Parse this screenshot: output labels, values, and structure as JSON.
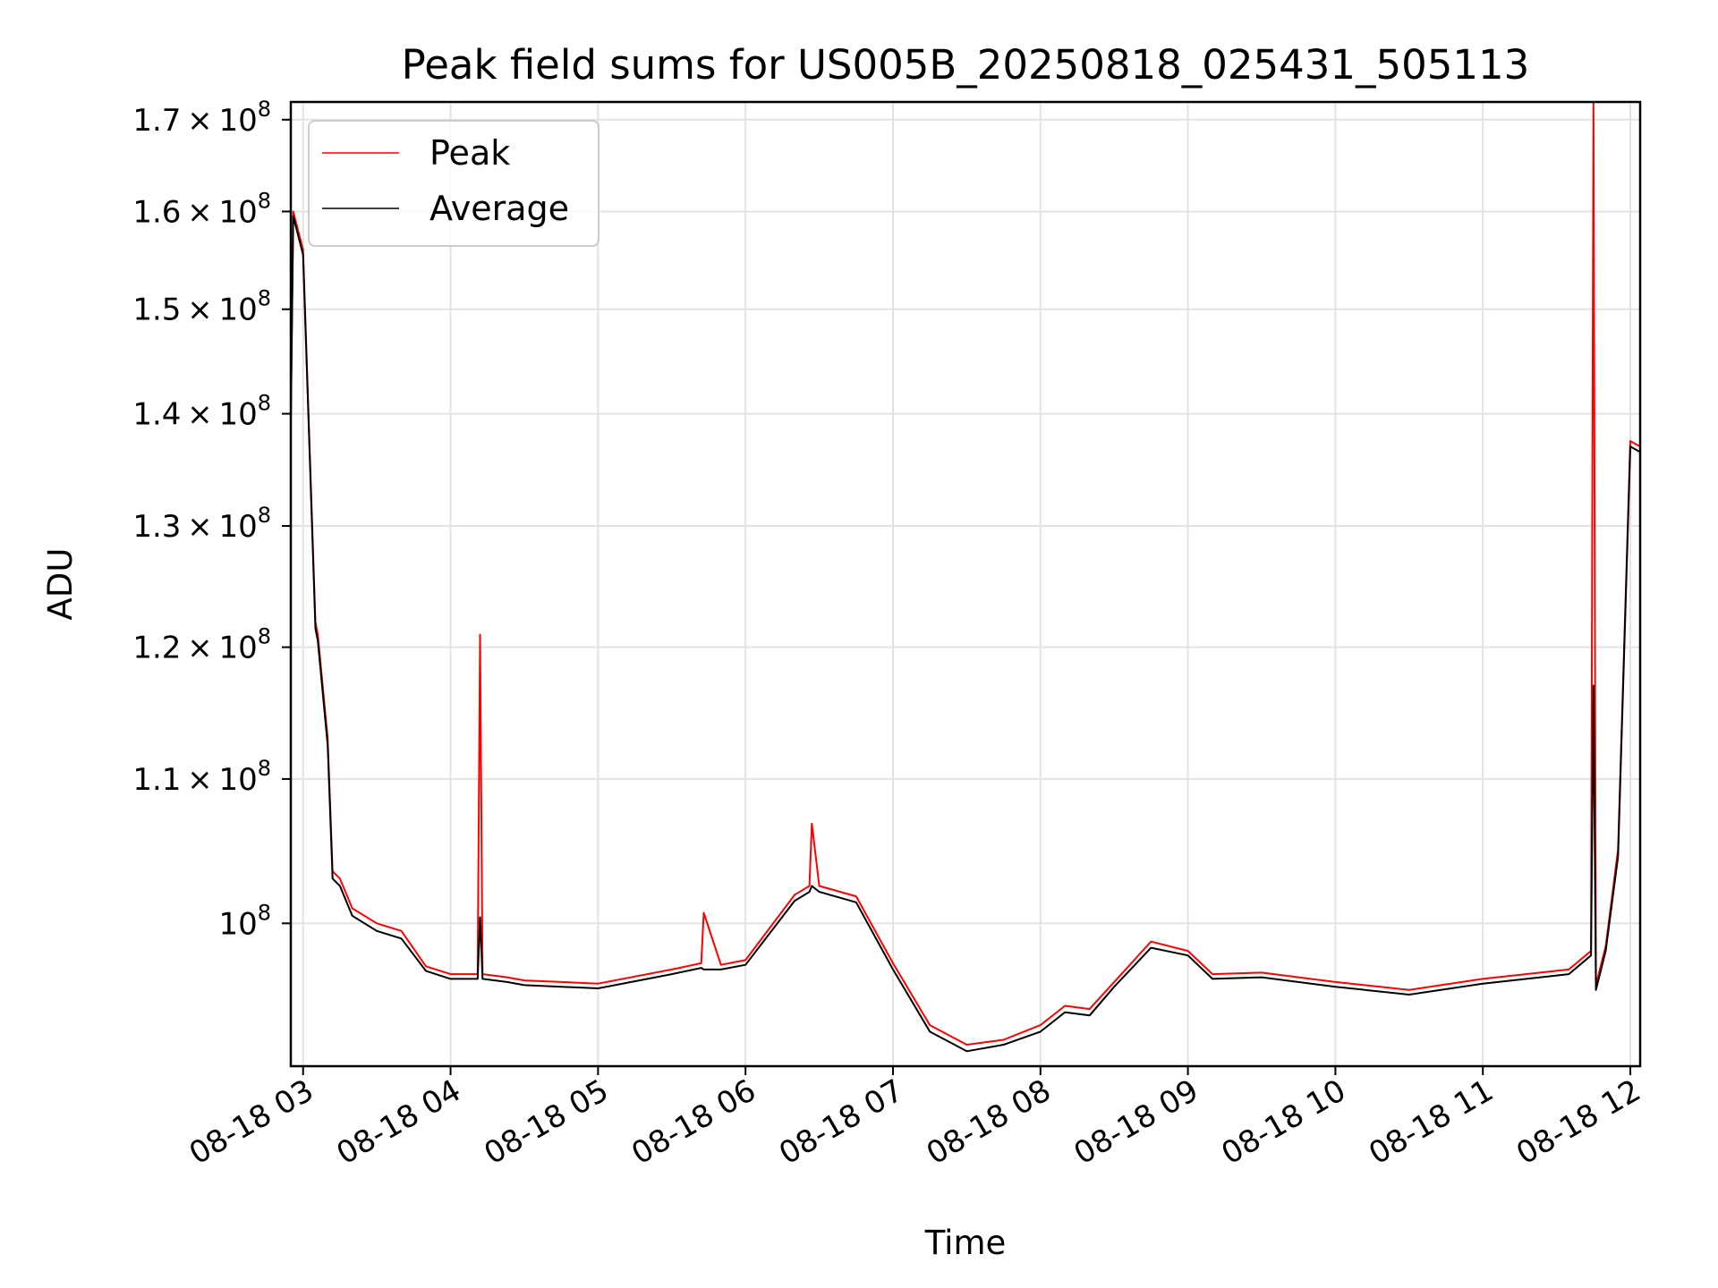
{
  "chart_data": {
    "type": "line",
    "title": "Peak field sums for US005B_20250818_025431_505113",
    "xlabel": "Time",
    "ylabel": "ADU",
    "yscale": "log",
    "ylim": [
      91000000,
      172000000
    ],
    "xlim": [
      "2025-08-18 02:55",
      "2025-08-18 12:04"
    ],
    "grid": true,
    "legend_position": "top-left",
    "x_ticks": [
      "08-18 03",
      "08-18 04",
      "08-18 05",
      "08-18 06",
      "08-18 07",
      "08-18 08",
      "08-18 09",
      "08-18 10",
      "08-18 11",
      "08-18 12"
    ],
    "y_ticks": [
      {
        "value": 100000000,
        "mantissa": "",
        "exponent": "8"
      },
      {
        "value": 110000000,
        "mantissa": "1.1",
        "exponent": "8"
      },
      {
        "value": 120000000,
        "mantissa": "1.2",
        "exponent": "8"
      },
      {
        "value": 130000000,
        "mantissa": "1.3",
        "exponent": "8"
      },
      {
        "value": 140000000,
        "mantissa": "1.4",
        "exponent": "8"
      },
      {
        "value": 150000000,
        "mantissa": "1.5",
        "exponent": "8"
      },
      {
        "value": 160000000,
        "mantissa": "1.6",
        "exponent": "8"
      },
      {
        "value": 170000000,
        "mantissa": "1.7",
        "exponent": "8"
      }
    ],
    "series": [
      {
        "name": "Peak",
        "color": "#ff0000",
        "x": [
          "2025-08-18 02:55",
          "2025-08-18 02:56",
          "2025-08-18 03:00",
          "2025-08-18 03:05",
          "2025-08-18 03:06",
          "2025-08-18 03:10",
          "2025-08-18 03:12",
          "2025-08-18 03:15",
          "2025-08-18 03:20",
          "2025-08-18 03:30",
          "2025-08-18 03:40",
          "2025-08-18 03:50",
          "2025-08-18 04:00",
          "2025-08-18 04:11",
          "2025-08-18 04:12",
          "2025-08-18 04:13",
          "2025-08-18 04:23",
          "2025-08-18 04:30",
          "2025-08-18 05:00",
          "2025-08-18 05:30",
          "2025-08-18 05:42",
          "2025-08-18 05:43",
          "2025-08-18 05:50",
          "2025-08-18 06:00",
          "2025-08-18 06:20",
          "2025-08-18 06:26",
          "2025-08-18 06:27",
          "2025-08-18 06:30",
          "2025-08-18 06:45",
          "2025-08-18 07:00",
          "2025-08-18 07:15",
          "2025-08-18 07:30",
          "2025-08-18 07:45",
          "2025-08-18 08:00",
          "2025-08-18 08:10",
          "2025-08-18 08:20",
          "2025-08-18 08:30",
          "2025-08-18 08:45",
          "2025-08-18 09:00",
          "2025-08-18 09:10",
          "2025-08-18 09:30",
          "2025-08-18 10:00",
          "2025-08-18 10:30",
          "2025-08-18 11:00",
          "2025-08-18 11:35",
          "2025-08-18 11:44",
          "2025-08-18 11:45",
          "2025-08-18 11:46",
          "2025-08-18 11:50",
          "2025-08-18 11:55",
          "2025-08-18 12:00",
          "2025-08-18 12:04"
        ],
        "y": [
          140000000,
          160000000,
          156000000,
          122000000,
          121000000,
          113000000,
          103500000,
          103000000,
          101000000,
          100000000,
          99500000,
          97200000,
          96700000,
          96700000,
          121000000,
          96700000,
          96500000,
          96300000,
          96100000,
          97000000,
          97400000,
          100700000,
          97300000,
          97600000,
          101900000,
          102500000,
          106800000,
          102500000,
          101800000,
          97400000,
          93500000,
          92300000,
          92600000,
          93500000,
          94700000,
          94500000,
          96200000,
          98800000,
          98200000,
          96700000,
          96800000,
          96200000,
          95700000,
          96400000,
          97000000,
          98200000,
          172000000,
          96000000,
          98500000,
          105000000,
          137500000,
          137000000
        ]
      },
      {
        "name": "Average",
        "color": "#000000",
        "x": [
          "2025-08-18 02:55",
          "2025-08-18 02:56",
          "2025-08-18 03:00",
          "2025-08-18 03:05",
          "2025-08-18 03:06",
          "2025-08-18 03:10",
          "2025-08-18 03:12",
          "2025-08-18 03:15",
          "2025-08-18 03:20",
          "2025-08-18 03:30",
          "2025-08-18 03:40",
          "2025-08-18 03:50",
          "2025-08-18 04:00",
          "2025-08-18 04:11",
          "2025-08-18 04:12",
          "2025-08-18 04:13",
          "2025-08-18 04:23",
          "2025-08-18 04:30",
          "2025-08-18 05:00",
          "2025-08-18 05:30",
          "2025-08-18 05:42",
          "2025-08-18 05:43",
          "2025-08-18 05:50",
          "2025-08-18 06:00",
          "2025-08-18 06:20",
          "2025-08-18 06:26",
          "2025-08-18 06:27",
          "2025-08-18 06:30",
          "2025-08-18 06:45",
          "2025-08-18 07:00",
          "2025-08-18 07:15",
          "2025-08-18 07:30",
          "2025-08-18 07:45",
          "2025-08-18 08:00",
          "2025-08-18 08:10",
          "2025-08-18 08:20",
          "2025-08-18 08:30",
          "2025-08-18 08:45",
          "2025-08-18 09:00",
          "2025-08-18 09:10",
          "2025-08-18 09:30",
          "2025-08-18 10:00",
          "2025-08-18 10:30",
          "2025-08-18 11:00",
          "2025-08-18 11:35",
          "2025-08-18 11:44",
          "2025-08-18 11:45",
          "2025-08-18 11:46",
          "2025-08-18 11:50",
          "2025-08-18 11:55",
          "2025-08-18 12:00",
          "2025-08-18 12:04"
        ],
        "y": [
          139000000,
          159500000,
          155500000,
          121500000,
          120500000,
          112500000,
          103000000,
          102500000,
          100500000,
          99500000,
          99000000,
          96900000,
          96400000,
          96400000,
          100400000,
          96400000,
          96200000,
          96000000,
          95800000,
          96700000,
          97100000,
          97000000,
          97000000,
          97300000,
          101500000,
          102100000,
          102500000,
          102100000,
          101400000,
          97000000,
          93100000,
          91900000,
          92300000,
          93100000,
          94300000,
          94100000,
          95900000,
          98400000,
          97900000,
          96400000,
          96500000,
          95900000,
          95400000,
          96100000,
          96700000,
          97900000,
          117000000,
          95700000,
          98200000,
          104500000,
          137000000,
          136500000
        ]
      }
    ]
  }
}
